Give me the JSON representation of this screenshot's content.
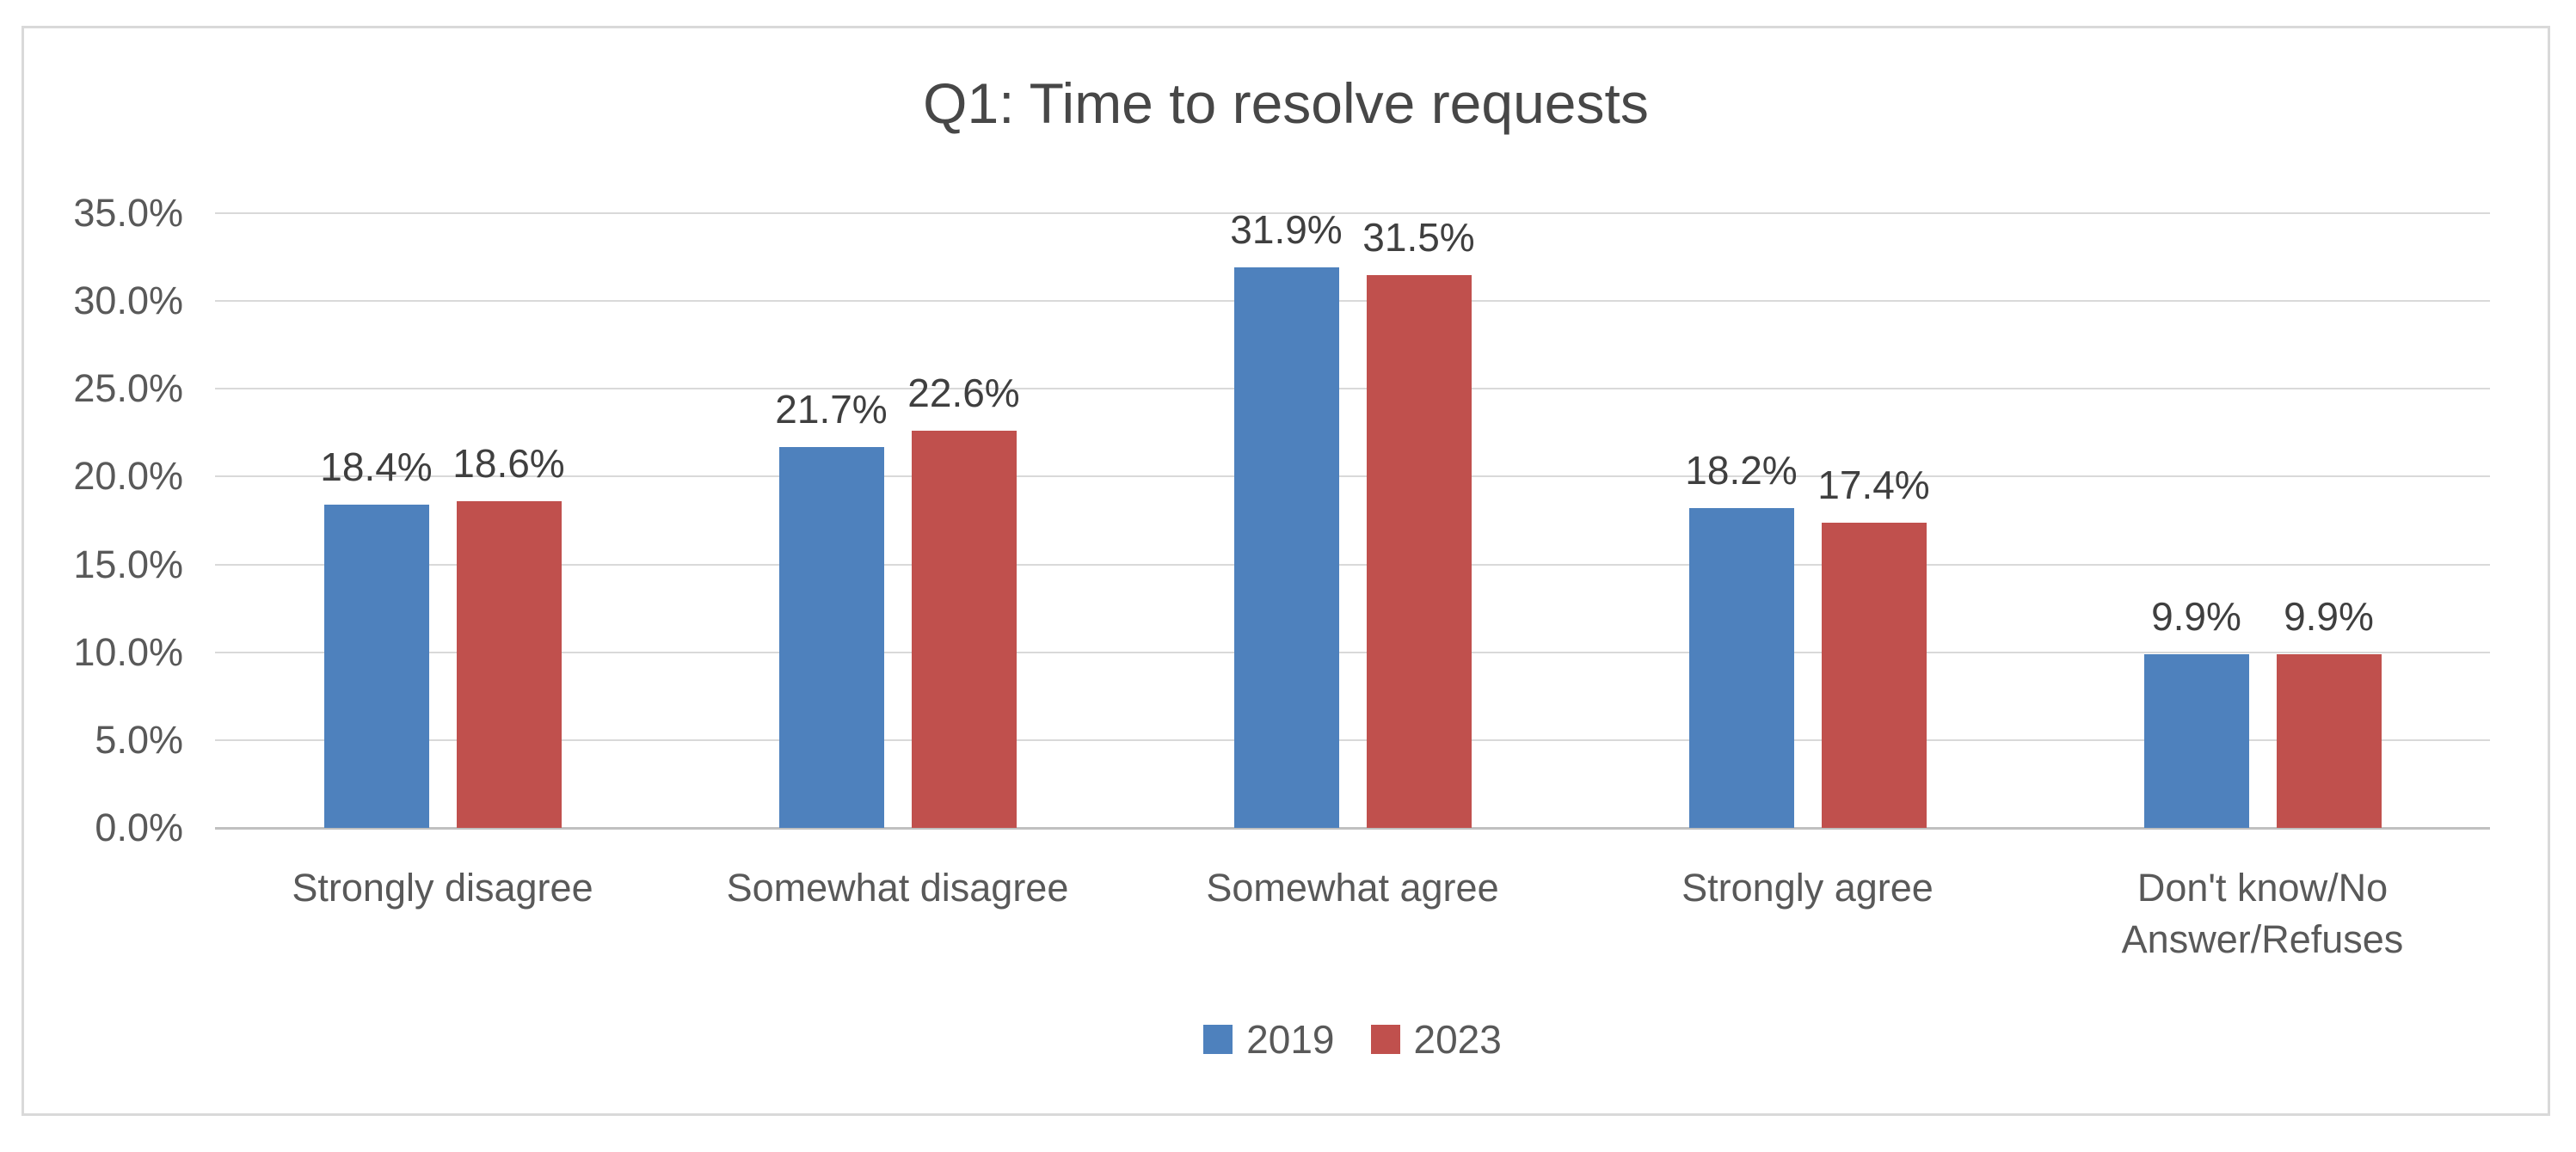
{
  "chart_data": {
    "type": "bar",
    "title": "Q1: Time to resolve requests",
    "categories": [
      "Strongly disagree",
      "Somewhat disagree",
      "Somewhat agree",
      "Strongly agree",
      "Don't know/No\nAnswer/Refuses"
    ],
    "series": [
      {
        "name": "2019",
        "color": "#4E81BD",
        "values": [
          18.4,
          21.7,
          31.9,
          18.2,
          9.9
        ],
        "labels": [
          "18.4%",
          "21.7%",
          "31.9%",
          "18.2%",
          "9.9%"
        ]
      },
      {
        "name": "2023",
        "color": "#C0504D",
        "values": [
          18.6,
          22.6,
          31.5,
          17.4,
          9.9
        ],
        "labels": [
          "18.6%",
          "22.6%",
          "31.5%",
          "17.4%",
          "9.9%"
        ]
      }
    ],
    "y_axis": {
      "min": 0,
      "max": 35,
      "step": 5,
      "tick_labels": [
        "0.0%",
        "5.0%",
        "10.0%",
        "15.0%",
        "20.0%",
        "25.0%",
        "30.0%",
        "35.0%"
      ]
    },
    "legend": {
      "position": "bottom",
      "entries": [
        "2019",
        "2023"
      ]
    },
    "grid": true,
    "colors": {
      "gridline": "#D9D9D9",
      "axis_line": "#C0C0C0",
      "tick_text": "#595959",
      "title_text": "#474747",
      "data_label_text": "#3F3F3F",
      "frame_border": "#D9D9D9",
      "background": "#FFFFFF"
    }
  }
}
